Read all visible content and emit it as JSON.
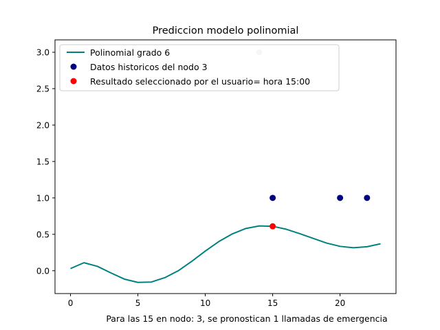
{
  "chart_data": {
    "type": "line",
    "title": "Prediccion modelo polinomial",
    "footnote": "Para las 15 en nodo: 3, se pronostican 1 llamadas de emergencia",
    "xlabel": "",
    "ylabel": "",
    "xlim": [
      -1.15,
      24.15
    ],
    "ylim": [
      -0.3135,
      3.17
    ],
    "xticks": [
      0,
      5,
      10,
      15,
      20
    ],
    "yticks": [
      0.0,
      0.5,
      1.0,
      1.5,
      2.0,
      2.5,
      3.0
    ],
    "ytick_labels": [
      "0.0",
      "0.5",
      "1.0",
      "1.5",
      "2.0",
      "2.5",
      "3.0"
    ],
    "grid": false,
    "legend_position": "upper-left",
    "series": [
      {
        "name": "Polinomial grado 6",
        "kind": "line",
        "color": "#008080",
        "x": [
          0,
          1,
          2,
          3,
          4,
          5,
          6,
          7,
          8,
          9,
          10,
          11,
          12,
          13,
          14,
          15,
          16,
          17,
          18,
          19,
          20,
          21,
          22,
          23
        ],
        "y": [
          0.03,
          0.11,
          0.06,
          -0.03,
          -0.115,
          -0.16,
          -0.155,
          -0.095,
          0.0,
          0.13,
          0.27,
          0.4,
          0.505,
          0.58,
          0.615,
          0.61,
          0.57,
          0.51,
          0.445,
          0.38,
          0.335,
          0.315,
          0.33,
          0.37
        ]
      },
      {
        "name": "Datos historicos del nodo 3",
        "kind": "scatter",
        "color": "#000080",
        "x": [
          14,
          15,
          20,
          22
        ],
        "y": [
          3.0,
          1.0,
          1.0,
          1.0
        ],
        "alpha": [
          0.2,
          1.0,
          1.0,
          1.0
        ]
      },
      {
        "name": "Resultado seleccionado por el usuario= hora 15:00",
        "kind": "scatter",
        "color": "#ff0000",
        "x": [
          15
        ],
        "y": [
          0.61
        ]
      }
    ]
  }
}
